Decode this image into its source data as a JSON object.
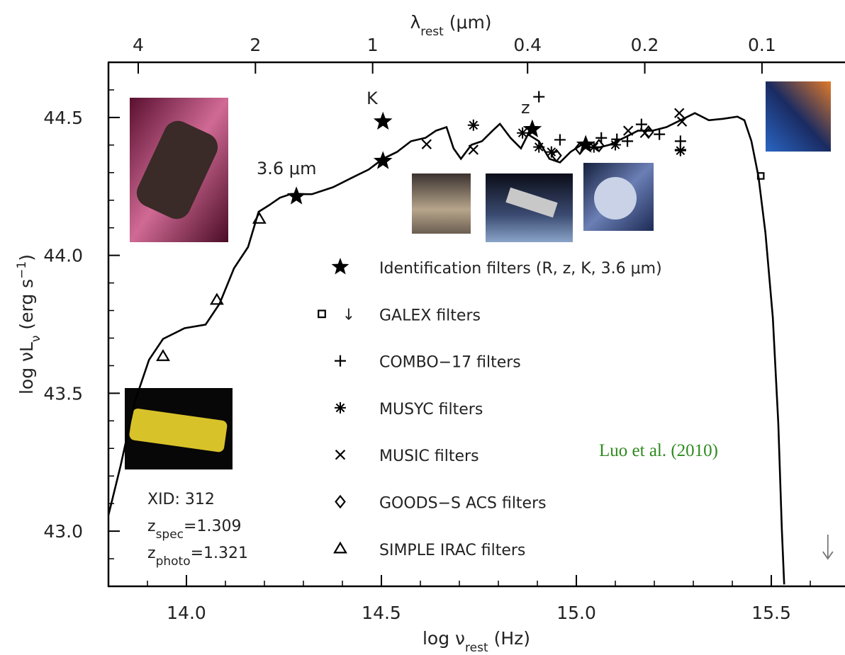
{
  "chart_data": {
    "type": "line",
    "xlabel": [
      {
        "text": "log ν"
      },
      {
        "text": "rest",
        "sub": true
      },
      {
        "text": " (Hz)"
      }
    ],
    "ylabel": [
      {
        "text": "log νL"
      },
      {
        "text": "ν",
        "sub": true
      },
      {
        "text": " (erg s"
      },
      {
        "text": "−1",
        "sup": true
      },
      {
        "text": ")"
      }
    ],
    "x2label": [
      {
        "text": "λ"
      },
      {
        "text": "rest",
        "sub": true
      },
      {
        "text": " (μm)"
      }
    ],
    "xlim": [
      13.8,
      15.689
    ],
    "ylim": [
      42.8,
      44.7
    ],
    "xticks": [
      {
        "value": 14,
        "label": "14.0"
      },
      14.5,
      {
        "value": 15,
        "label": "15.0"
      },
      15.5
    ],
    "yticks": [
      {
        "value": 43,
        "label": "43.0"
      },
      43.5,
      {
        "value": 44,
        "label": "44.0"
      },
      44.5
    ],
    "xminorticks": [
      13.9,
      14.1,
      14.2,
      14.3,
      14.4,
      14.6,
      14.7,
      14.8,
      14.9,
      15.1,
      15.2,
      15.3,
      15.4,
      15.6
    ],
    "yminorticks": [
      42.9,
      43.1,
      43.2,
      43.3,
      43.4,
      43.6,
      43.7,
      43.8,
      43.9,
      44.1,
      44.2,
      44.3,
      44.4,
      44.6
    ],
    "x2scale": "log",
    "x2lim": [
      4.77,
      0.0612
    ],
    "x2ticks": [
      4,
      2,
      1,
      0.4,
      0.2,
      0.1
    ],
    "model": {
      "color": "#000000",
      "x": [
        13.8,
        13.831,
        13.867,
        13.904,
        13.94,
        13.995,
        14.049,
        14.085,
        14.122,
        14.158,
        14.185,
        14.213,
        14.24,
        14.267,
        14.322,
        14.376,
        14.431,
        14.467,
        14.504,
        14.54,
        14.576,
        14.613,
        14.64,
        14.667,
        14.685,
        14.704,
        14.731,
        14.758,
        14.785,
        14.804,
        14.831,
        14.858,
        14.876,
        14.904,
        14.931,
        14.958,
        14.985,
        15.013,
        15.049,
        15.085,
        15.122,
        15.158,
        15.195,
        15.231,
        15.267,
        15.304,
        15.34,
        15.376,
        15.413,
        15.431,
        15.449,
        15.467,
        15.485,
        15.504,
        15.518,
        15.527,
        15.533
      ],
      "y": [
        43.058,
        43.237,
        43.467,
        43.621,
        43.697,
        43.736,
        43.749,
        43.825,
        43.953,
        44.03,
        44.158,
        44.183,
        44.209,
        44.222,
        44.222,
        44.247,
        44.286,
        44.311,
        44.35,
        44.375,
        44.414,
        44.426,
        44.452,
        44.465,
        44.388,
        44.35,
        44.401,
        44.414,
        44.452,
        44.477,
        44.426,
        44.388,
        44.439,
        44.414,
        44.35,
        44.337,
        44.375,
        44.401,
        44.388,
        44.401,
        44.426,
        44.452,
        44.452,
        44.465,
        44.49,
        44.516,
        44.49,
        44.495,
        44.503,
        44.49,
        44.414,
        44.286,
        44.081,
        43.774,
        43.391,
        43.007,
        42.807
      ]
    },
    "series": [
      {
        "name": "Identification filters (R, z, K, 3.6 μm)",
        "type": "scatter",
        "marker": "star",
        "color": "#000000",
        "x": [
          14.282,
          14.504,
          14.504,
          14.887,
          15.024
        ],
        "y": [
          44.214,
          44.342,
          44.485,
          44.457,
          44.401
        ]
      },
      {
        "name": "GALEX filters",
        "limit_symbol": "↓",
        "type": "scatter",
        "marker": "square",
        "color": "#000000",
        "x": [
          15.473
        ],
        "y": [
          44.288
        ]
      },
      {
        "name": "COMBO−17 filters",
        "type": "scatter",
        "marker": "plus",
        "color": "#000000",
        "x": [
          14.904,
          14.958,
          15.064,
          15.104,
          15.131,
          15.167,
          15.213,
          15.267,
          15.267
        ],
        "y": [
          44.575,
          44.419,
          44.426,
          44.421,
          44.414,
          44.475,
          44.439,
          44.414,
          44.383
        ]
      },
      {
        "name": "MUSYC filters",
        "type": "scatter",
        "marker": "asterisk",
        "color": "#000000",
        "x": [
          14.736,
          14.862,
          14.904,
          14.936,
          15.045,
          15.1,
          15.267
        ],
        "y": [
          44.472,
          44.444,
          44.393,
          44.375,
          44.393,
          44.401,
          44.38
        ]
      },
      {
        "name": "MUSIC filters",
        "type": "scatter",
        "marker": "cross",
        "color": "#000000",
        "x": [
          14.616,
          14.736,
          15.133,
          15.176,
          15.264,
          15.271
        ],
        "y": [
          44.403,
          44.383,
          44.452,
          44.444,
          44.516,
          44.485
        ]
      },
      {
        "name": "GOODS−S ACS filters",
        "type": "scatter",
        "marker": "diamond",
        "color": "#000000",
        "x": [
          14.949,
          15.009,
          15.058,
          15.185
        ],
        "y": [
          44.362,
          44.388,
          44.398,
          44.447
        ]
      },
      {
        "name": "SIMPLE IRAC filters",
        "type": "scatter",
        "marker": "triangle",
        "color": "#000000",
        "x": [
          13.94,
          14.078,
          14.187
        ],
        "y": [
          43.634,
          43.838,
          44.132
        ]
      }
    ],
    "upper_limits": {
      "x": [
        15.645
      ],
      "y": [
        42.9
      ],
      "color": "#777777"
    },
    "annotations": [
      "K",
      "z",
      "3.6 μm"
    ],
    "info": [
      [
        {
          "text": "XID: 312"
        }
      ],
      [
        {
          "text": "z"
        },
        {
          "text": "spec",
          "sub": true
        },
        {
          "text": "=1.309"
        }
      ],
      [
        {
          "text": "z"
        },
        {
          "text": "photo",
          "sub": true
        },
        {
          "text": "=1.321"
        }
      ]
    ],
    "credit": {
      "text": "Luo et al. (2010)",
      "color": "#2e8b1e"
    }
  }
}
